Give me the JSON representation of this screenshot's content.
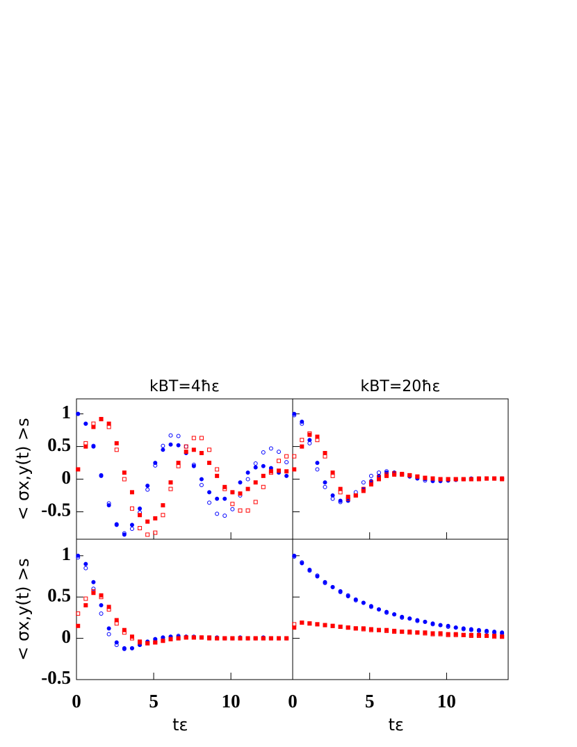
{
  "chart_data": [
    {
      "type": "scatter",
      "title": "kBT=4ħε",
      "ylabel": "< σx,y(t) >s",
      "xlim": [
        0,
        14
      ],
      "ylim": [
        -0.92,
        1.23
      ],
      "xticks": [
        0,
        5,
        10
      ],
      "yticks": [
        -0.5,
        0,
        0.5,
        1
      ],
      "show_xticklabels": false,
      "show_yticklabels": true,
      "x": [
        0.1,
        0.6,
        1.1,
        1.6,
        2.1,
        2.6,
        3.1,
        3.6,
        4.1,
        4.6,
        5.1,
        5.6,
        6.1,
        6.6,
        7.1,
        7.6,
        8.1,
        8.6,
        9.1,
        9.6,
        10.1,
        10.6,
        11.1,
        11.6,
        12.1,
        12.6,
        13.1,
        13.6
      ],
      "series": [
        {
          "color": "#0000ff",
          "marker": "circle",
          "filled": true,
          "values": [
            1.0,
            0.85,
            0.5,
            0.05,
            -0.4,
            -0.7,
            -0.85,
            -0.7,
            -0.45,
            -0.1,
            0.25,
            0.45,
            0.53,
            0.52,
            0.4,
            0.2,
            0,
            -0.2,
            -0.3,
            -0.3,
            -0.2,
            -0.05,
            0.1,
            0.18,
            0.2,
            0.17,
            0.1,
            0.05
          ]
        },
        {
          "color": "#0000ff",
          "marker": "circle",
          "filled": false,
          "values": [
            1.0,
            0.85,
            0.51,
            0.06,
            -0.37,
            -0.69,
            -0.83,
            -0.76,
            -0.51,
            -0.16,
            0.21,
            0.51,
            0.67,
            0.66,
            0.5,
            0.22,
            -0.09,
            -0.36,
            -0.53,
            -0.56,
            -0.46,
            -0.25,
            0,
            0.24,
            0.41,
            0.47,
            0.42,
            0.26
          ]
        },
        {
          "color": "#ff0000",
          "marker": "square",
          "filled": true,
          "values": [
            0.15,
            0.5,
            0.8,
            0.92,
            0.85,
            0.55,
            0.1,
            -0.2,
            -0.55,
            -0.65,
            -0.6,
            -0.4,
            -0.05,
            0.25,
            0.42,
            0.45,
            0.4,
            0.25,
            0.05,
            -0.12,
            -0.2,
            -0.22,
            -0.15,
            -0.05,
            0.05,
            0.12,
            0.13,
            0.12
          ]
        },
        {
          "color": "#ff0000",
          "marker": "square",
          "filled": false,
          "values": [
            0.15,
            0.55,
            0.85,
            0.92,
            0.8,
            0.45,
            0,
            -0.45,
            -0.75,
            -0.85,
            -0.82,
            -0.55,
            -0.15,
            0.2,
            0.5,
            0.63,
            0.63,
            0.45,
            0.15,
            -0.15,
            -0.38,
            -0.48,
            -0.48,
            -0.35,
            -0.12,
            0.1,
            0.28,
            0.35
          ]
        }
      ]
    },
    {
      "type": "scatter",
      "title": "kBT=20ħε",
      "xlim": [
        0,
        14
      ],
      "ylim": [
        -0.92,
        1.23
      ],
      "xticks": [
        0,
        5,
        10
      ],
      "yticks": [
        -0.5,
        0,
        0.5,
        1
      ],
      "show_xticklabels": false,
      "show_yticklabels": false,
      "x": [
        0.1,
        0.6,
        1.1,
        1.6,
        2.1,
        2.6,
        3.1,
        3.6,
        4.1,
        4.6,
        5.1,
        5.6,
        6.1,
        6.6,
        7.1,
        7.6,
        8.1,
        8.6,
        9.1,
        9.6,
        10.1,
        10.6,
        11.1,
        11.6,
        12.1,
        12.6,
        13.1,
        13.6
      ],
      "series": [
        {
          "color": "#0000ff",
          "marker": "circle",
          "filled": true,
          "values": [
            1,
            0.88,
            0.6,
            0.25,
            -0.05,
            -0.25,
            -0.33,
            -0.33,
            -0.25,
            -0.15,
            -0.03,
            0.05,
            0.1,
            0.1,
            0.08,
            0.05,
            0.02,
            0,
            -0.02,
            -0.02,
            -0.02,
            -0.01,
            0,
            0,
            0.01,
            0.01,
            0.01,
            0.01
          ]
        },
        {
          "color": "#0000ff",
          "marker": "circle",
          "filled": false,
          "values": [
            0.98,
            0.85,
            0.55,
            0.15,
            -0.12,
            -0.3,
            -0.35,
            -0.3,
            -0.2,
            -0.05,
            0.05,
            0.1,
            0.12,
            0.1,
            0.07,
            0.04,
            0.01,
            -0.02,
            -0.03,
            -0.03,
            -0.02,
            -0.01,
            0,
            0.01,
            0.01,
            0.01,
            0.01,
            0.01
          ]
        },
        {
          "color": "#ff0000",
          "marker": "square",
          "filled": true,
          "values": [
            0.15,
            0.5,
            0.68,
            0.65,
            0.4,
            0.1,
            -0.15,
            -0.27,
            -0.25,
            -0.18,
            -0.08,
            0,
            0.05,
            0.07,
            0.07,
            0.06,
            0.04,
            0.02,
            0.01,
            0,
            0,
            0,
            0,
            0,
            0.01,
            0.01,
            0.01,
            0
          ]
        },
        {
          "color": "#ff0000",
          "marker": "square",
          "filled": false,
          "values": [
            0.35,
            0.6,
            0.7,
            0.6,
            0.35,
            0.05,
            -0.2,
            -0.3,
            -0.25,
            -0.15,
            -0.05,
            0.03,
            0.07,
            0.09,
            0.08,
            0.06,
            0.04,
            0.02,
            0.01,
            0,
            0,
            0,
            0,
            0,
            0,
            0.01,
            0.01,
            0.01
          ]
        }
      ]
    },
    {
      "type": "scatter",
      "ylabel": "< σx,y(t) >s",
      "xlabel": "tε",
      "xlim": [
        0,
        14
      ],
      "ylim": [
        -0.5,
        1.2
      ],
      "xticks": [
        0,
        5,
        10
      ],
      "yticks": [
        -0.5,
        0,
        0.5,
        1
      ],
      "show_xticklabels": true,
      "show_yticklabels": true,
      "x": [
        0.1,
        0.6,
        1.1,
        1.6,
        2.1,
        2.6,
        3.1,
        3.6,
        4.1,
        4.6,
        5.1,
        5.6,
        6.1,
        6.6,
        7.1,
        7.6,
        8.1,
        8.6,
        9.1,
        9.6,
        10.1,
        10.6,
        11.1,
        11.6,
        12.1,
        12.6,
        13.1,
        13.6
      ],
      "series": [
        {
          "color": "#0000ff",
          "marker": "circle",
          "filled": true,
          "values": [
            1,
            0.9,
            0.68,
            0.4,
            0.12,
            -0.05,
            -0.12,
            -0.12,
            -0.08,
            -0.04,
            -0.01,
            0.01,
            0.02,
            0.02,
            0.02,
            0.01,
            0.01,
            0,
            0,
            0,
            0,
            0,
            0,
            0,
            0,
            0,
            0,
            0
          ]
        },
        {
          "color": "#0000ff",
          "marker": "circle",
          "filled": false,
          "values": [
            0.98,
            0.85,
            0.6,
            0.3,
            0.05,
            -0.08,
            -0.13,
            -0.12,
            -0.08,
            -0.04,
            -0.01,
            0.01,
            0.02,
            0.03,
            0.02,
            0.02,
            0.01,
            0.01,
            0.01,
            0,
            0,
            0.01,
            0,
            0,
            0.01,
            0,
            0,
            0
          ]
        },
        {
          "color": "#ff0000",
          "marker": "square",
          "filled": true,
          "values": [
            0.15,
            0.4,
            0.55,
            0.52,
            0.38,
            0.22,
            0.1,
            0.02,
            -0.04,
            -0.06,
            -0.05,
            -0.03,
            -0.01,
            0,
            0.01,
            0.01,
            0.01,
            0,
            0,
            0,
            0,
            0,
            0,
            0,
            0,
            0,
            0,
            0
          ]
        },
        {
          "color": "#ff0000",
          "marker": "square",
          "filled": false,
          "values": [
            0.3,
            0.48,
            0.57,
            0.5,
            0.35,
            0.18,
            0.07,
            0,
            -0.05,
            -0.06,
            -0.05,
            -0.03,
            -0.01,
            0,
            0.01,
            0.01,
            0.01,
            0.01,
            0,
            0,
            0,
            0,
            0,
            0,
            0,
            0,
            0,
            0
          ]
        }
      ]
    },
    {
      "type": "scatter",
      "xlabel": "tε",
      "xlim": [
        0,
        14
      ],
      "ylim": [
        -0.5,
        1.2
      ],
      "xticks": [
        0,
        5,
        10
      ],
      "yticks": [
        -0.5,
        0,
        0.5,
        1
      ],
      "show_xticklabels": true,
      "show_yticklabels": false,
      "x": [
        0.1,
        0.6,
        1.1,
        1.6,
        2.1,
        2.6,
        3.1,
        3.6,
        4.1,
        4.6,
        5.1,
        5.6,
        6.1,
        6.6,
        7.1,
        7.6,
        8.1,
        8.6,
        9.1,
        9.6,
        10.1,
        10.6,
        11.1,
        11.6,
        12.1,
        12.6,
        13.1,
        13.6
      ],
      "series": [
        {
          "color": "#0000ff",
          "marker": "circle",
          "filled": true,
          "values": [
            1,
            0.91,
            0.83,
            0.75,
            0.68,
            0.62,
            0.57,
            0.51,
            0.47,
            0.43,
            0.39,
            0.35,
            0.32,
            0.29,
            0.26,
            0.24,
            0.22,
            0.2,
            0.18,
            0.16,
            0.15,
            0.13,
            0.12,
            0.11,
            0.1,
            0.09,
            0.08,
            0.07
          ]
        },
        {
          "color": "#0000ff",
          "marker": "circle",
          "filled": false,
          "values": [
            0.99,
            0.92,
            0.82,
            0.76,
            0.67,
            0.62,
            0.56,
            0.52,
            0.46,
            0.43,
            0.38,
            0.35,
            0.31,
            0.29,
            0.25,
            0.24,
            0.21,
            0.2,
            0.17,
            0.16,
            0.14,
            0.13,
            0.11,
            0.1,
            0.09,
            0.08,
            0.07,
            0.06
          ]
        },
        {
          "color": "#ff0000",
          "marker": "square",
          "filled": true,
          "values": [
            0.13,
            0.19,
            0.18,
            0.17,
            0.16,
            0.15,
            0.14,
            0.13,
            0.12,
            0.12,
            0.11,
            0.1,
            0.1,
            0.09,
            0.08,
            0.08,
            0.07,
            0.07,
            0.06,
            0.06,
            0.05,
            0.05,
            0.04,
            0.04,
            0.04,
            0.03,
            0.03,
            0.02
          ]
        },
        {
          "color": "#ff0000",
          "marker": "square",
          "filled": false,
          "values": [
            0.17,
            0.19,
            0.18,
            0.17,
            0.16,
            0.15,
            0.14,
            0.13,
            0.12,
            0.11,
            0.1,
            0.1,
            0.09,
            0.08,
            0.08,
            0.07,
            0.07,
            0.06,
            0.05,
            0.05,
            0.04,
            0.04,
            0.04,
            0.03,
            0.03,
            0.03,
            0.02,
            0.02
          ]
        }
      ]
    }
  ]
}
